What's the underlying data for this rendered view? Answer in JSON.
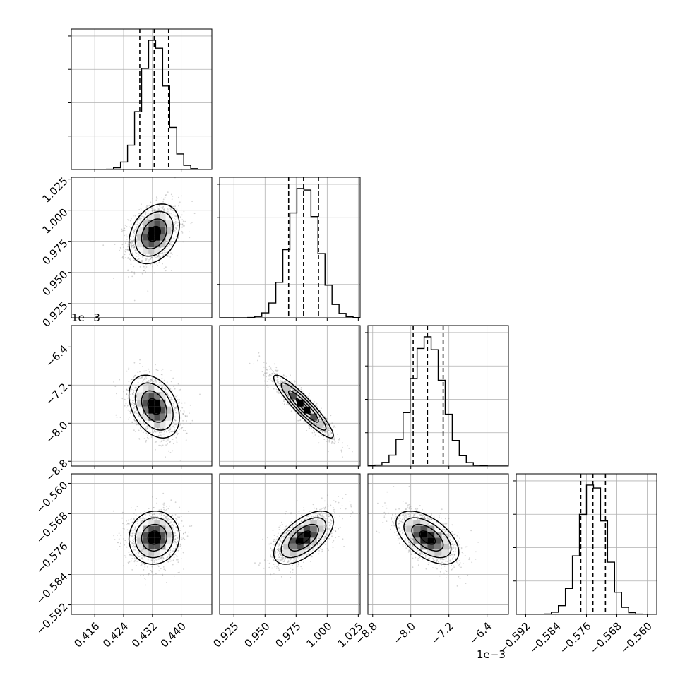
{
  "chart_data": {
    "type": "corner",
    "n_params": 4,
    "style": {
      "hist_color": "#000000",
      "quantile_linestyle": "dashed",
      "grid": true,
      "contour_color": "#000000",
      "point_color": "#808080"
    },
    "params": [
      {
        "range": [
          0.4095,
          0.4485
        ],
        "ticks": [
          0.416,
          0.424,
          0.432,
          0.44
        ],
        "tick_labels": [
          "0.416",
          "0.424",
          "0.432",
          "0.440"
        ],
        "mean": 0.4325,
        "sd": 0.0035,
        "quantiles": [
          0.4285,
          0.4325,
          0.4365
        ],
        "offset_label": ""
      },
      {
        "range": [
          0.9135,
          1.0265
        ],
        "ticks": [
          0.925,
          0.95,
          0.975,
          1.0,
          1.025
        ],
        "tick_labels": [
          "0.925",
          "0.950",
          "0.975",
          "1.000",
          "1.025"
        ],
        "mean": 0.981,
        "sd": 0.012,
        "quantiles": [
          0.969,
          0.981,
          0.993
        ],
        "offset_label": ""
      },
      {
        "range": [
          -8.9,
          -5.95
        ],
        "ticks": [
          -8.8,
          -8.0,
          -7.2,
          -6.4
        ],
        "tick_labels": [
          "−8.8",
          "−8.0",
          "−7.2",
          "−6.4"
        ],
        "mean": -7.65,
        "sd": 0.33,
        "quantiles": [
          -7.95,
          -7.65,
          -7.32
        ],
        "offset_label": "1e−3"
      },
      {
        "range": [
          -0.5945,
          -0.5575
        ],
        "ticks": [
          -0.592,
          -0.584,
          -0.576,
          -0.568,
          -0.56
        ],
        "tick_labels": [
          "−0.592",
          "−0.584",
          "−0.576",
          "−0.568",
          "−0.560"
        ],
        "mean": -0.5743,
        "sd": 0.0035,
        "quantiles": [
          -0.5775,
          -0.5743,
          -0.571
        ],
        "offset_label": ""
      }
    ],
    "correlations": [
      {
        "pair": [
          0,
          1
        ],
        "rho": 0.3
      },
      {
        "pair": [
          0,
          2
        ],
        "rho": -0.35
      },
      {
        "pair": [
          1,
          2
        ],
        "rho": -0.92
      },
      {
        "pair": [
          0,
          3
        ],
        "rho": 0.05
      },
      {
        "pair": [
          1,
          3
        ],
        "rho": 0.6
      },
      {
        "pair": [
          2,
          3
        ],
        "rho": -0.55
      }
    ],
    "contour_levels_sigma": [
      0.5,
      1.0,
      1.5,
      2.0
    ]
  }
}
